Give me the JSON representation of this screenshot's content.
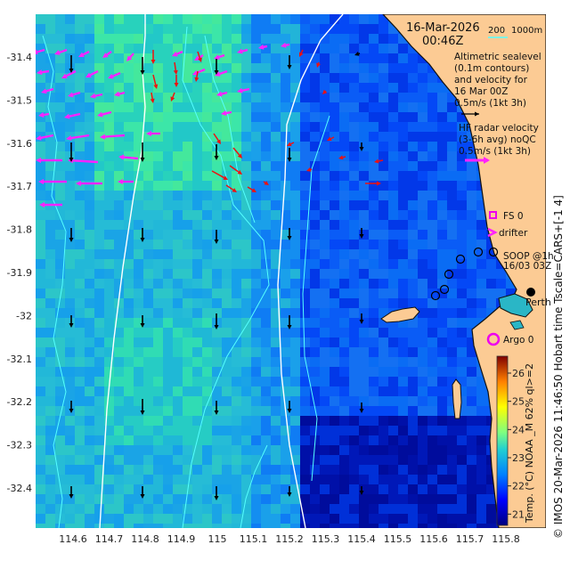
{
  "header": {
    "date": "16-Mar-2026",
    "time": "00:46Z",
    "depth_200": "200",
    "depth_1000": "1000m"
  },
  "legend": {
    "altimetric": [
      "Altimetric sealevel",
      "(0.1m contours)",
      "and velocity for",
      "16 Mar 00Z"
    ],
    "alt_speed": "0.5m/s (1kt 3h)",
    "hf": [
      "HF radar velocity",
      "(3-6h avg) noQC"
    ],
    "hf_speed": "0.5m/s (1kt 3h)",
    "fs": "FS 0",
    "drifter": "drifter",
    "soop": [
      "SOOP @1h",
      "16/03 03Z"
    ],
    "argo": "Argo 0",
    "place": "Perth"
  },
  "side_caption": "© IMOS 20-Mar-2026 11:46:50 Hobart time Tscale=CARS+[-1 4]",
  "colorbar": {
    "label": "Temp. (°C) NOAA _M 62% ql>=2",
    "ticks": [
      "21",
      "22",
      "23",
      "24",
      "25",
      "26"
    ],
    "range": [
      20.6,
      26.6
    ]
  },
  "axes": {
    "lon": [
      "114.6",
      "114.7",
      "114.8",
      "114.9",
      "115",
      "115.1",
      "115.2",
      "115.3",
      "115.4",
      "115.5",
      "115.6",
      "115.7",
      "115.8"
    ],
    "lat": [
      "-31.4",
      "-31.5",
      "-31.6",
      "-31.7",
      "-31.8",
      "-31.9",
      "-32",
      "-32.1",
      "-32.2",
      "-32.3",
      "-32.4"
    ]
  },
  "colors": {
    "land": "#fccb94",
    "hf_arrow": "#ff22ff",
    "alt_arrow": "#000000",
    "fs_marker": "#ee00ee",
    "red_vector": "#ee1111",
    "contour": "#55ffff"
  }
}
